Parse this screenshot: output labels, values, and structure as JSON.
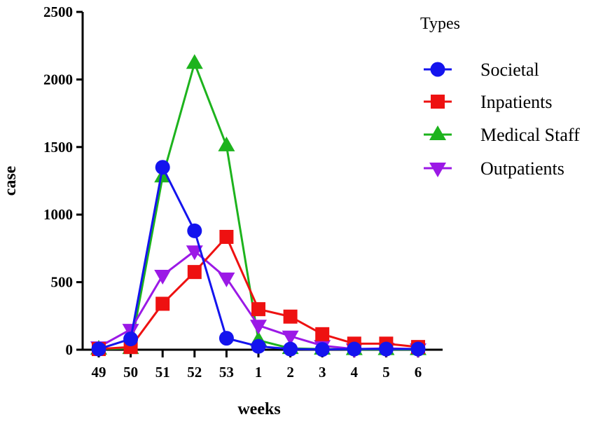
{
  "chart_data": {
    "type": "line",
    "title": "",
    "xlabel": "weeks",
    "ylabel": "case",
    "categories": [
      "49",
      "50",
      "51",
      "52",
      "53",
      "1",
      "2",
      "3",
      "4",
      "5",
      "6"
    ],
    "ylim": [
      0,
      2500
    ],
    "yticks": [
      "0",
      "500",
      "1000",
      "1500",
      "2000",
      "2500"
    ],
    "legend_title": "Types",
    "legend_position": "top-right",
    "series": [
      {
        "name": "Medical Staff",
        "marker": "triangle-up",
        "color": "#1db31d",
        "values": [
          5,
          10,
          1280,
          2120,
          1510,
          70,
          10,
          5,
          2,
          2,
          2
        ]
      },
      {
        "name": "Outpatients",
        "marker": "triangle-down",
        "color": "#9b19e6",
        "values": [
          20,
          150,
          550,
          730,
          530,
          180,
          100,
          30,
          5,
          10,
          5
        ]
      },
      {
        "name": "Inpatients",
        "marker": "square",
        "color": "#ee1111",
        "values": [
          5,
          20,
          340,
          575,
          835,
          300,
          245,
          115,
          45,
          45,
          20
        ]
      },
      {
        "name": "Societal",
        "marker": "circle",
        "color": "#1414ee",
        "values": [
          5,
          80,
          1350,
          880,
          85,
          25,
          5,
          2,
          5,
          5,
          5
        ]
      }
    ],
    "legend_order": [
      "Societal",
      "Inpatients",
      "Medical Staff",
      "Outpatients"
    ]
  }
}
